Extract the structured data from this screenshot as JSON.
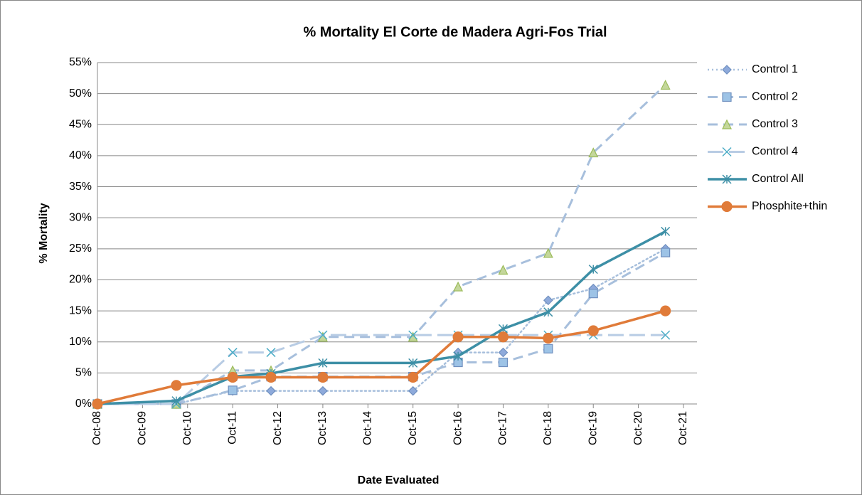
{
  "chart_data": {
    "type": "line",
    "title": "%  Mortality El Corte de Madera Agri-Fos Trial",
    "x_label": "Date Evaluated",
    "y_label": "% Mortality",
    "x": [
      8,
      9.75,
      11,
      11.85,
      13,
      15,
      16,
      17,
      18,
      19,
      20.6
    ],
    "xlim": [
      8,
      21.3
    ],
    "xticks": [
      {
        "value": 8,
        "label": "Oct-08"
      },
      {
        "value": 9,
        "label": "Oct-09"
      },
      {
        "value": 10,
        "label": "Oct-10"
      },
      {
        "value": 11,
        "label": "Oct-11"
      },
      {
        "value": 12,
        "label": "Oct-12"
      },
      {
        "value": 13,
        "label": "Oct-13"
      },
      {
        "value": 14,
        "label": "Oct-14"
      },
      {
        "value": 15,
        "label": "Oct-15"
      },
      {
        "value": 16,
        "label": "Oct-16"
      },
      {
        "value": 17,
        "label": "Oct-17"
      },
      {
        "value": 18,
        "label": "Oct-18"
      },
      {
        "value": 19,
        "label": "Oct-19"
      },
      {
        "value": 20,
        "label": "Oct-20"
      },
      {
        "value": 21,
        "label": "Oct-21"
      }
    ],
    "ylim": [
      0,
      55
    ],
    "yticks": [
      {
        "value": 0,
        "label": "0%"
      },
      {
        "value": 5,
        "label": "5%"
      },
      {
        "value": 10,
        "label": "10%"
      },
      {
        "value": 15,
        "label": "15%"
      },
      {
        "value": 20,
        "label": "20%"
      },
      {
        "value": 25,
        "label": "25%"
      },
      {
        "value": 30,
        "label": "30%"
      },
      {
        "value": 35,
        "label": "35%"
      },
      {
        "value": 40,
        "label": "40%"
      },
      {
        "value": 45,
        "label": "45%"
      },
      {
        "value": 50,
        "label": "50%"
      },
      {
        "value": 55,
        "label": "55%"
      }
    ],
    "grid": true,
    "legend": "right",
    "series": [
      {
        "name": "Control 1",
        "color": "#a7bfdc",
        "marker": "diamond",
        "marker_color": "#8eaadb",
        "dash": "2,4",
        "width": 2.5,
        "values": [
          0,
          0,
          2.1,
          2.1,
          2.1,
          2.1,
          8.3,
          8.3,
          16.7,
          18.6,
          25
        ]
      },
      {
        "name": "Control 2",
        "color": "#a7bfdc",
        "marker": "square",
        "marker_color": "#9dc3e6",
        "dash": "14,8",
        "width": 3,
        "values": [
          0,
          0,
          2.2,
          4.4,
          4.4,
          4.4,
          6.7,
          6.7,
          8.9,
          17.8,
          24.4
        ]
      },
      {
        "name": "Control 3",
        "color": "#a7bfdc",
        "marker": "triangle",
        "marker_color": "#c4d79b",
        "dash": "14,8",
        "width": 3,
        "values": [
          0,
          0,
          5.4,
          5.4,
          10.8,
          10.8,
          18.9,
          21.6,
          24.3,
          40.5,
          51.4
        ]
      },
      {
        "name": "Control 4",
        "color": "#b8cce4",
        "marker": "x",
        "marker_color": "#4bacc6",
        "dash": "22,8",
        "width": 3,
        "values": [
          0,
          0,
          8.3,
          8.3,
          11.1,
          11.1,
          11.1,
          11.1,
          11.1,
          11.1,
          11.1
        ]
      },
      {
        "name": "Control All",
        "color": "#3d8fa6",
        "marker": "star",
        "marker_color": "#3d8fa6",
        "dash": "none",
        "width": 3.5,
        "values": [
          0,
          0.5,
          4.4,
          4.9,
          6.6,
          6.6,
          7.7,
          12.1,
          14.8,
          21.7,
          27.8
        ]
      },
      {
        "name": "Phosphite+thin",
        "color": "#e07b39",
        "marker": "circle",
        "marker_color": "#e07b39",
        "dash": "none",
        "width": 3.5,
        "values": [
          0,
          3,
          4.3,
          4.3,
          4.3,
          4.3,
          10.8,
          10.8,
          10.6,
          11.8,
          15
        ]
      }
    ]
  }
}
